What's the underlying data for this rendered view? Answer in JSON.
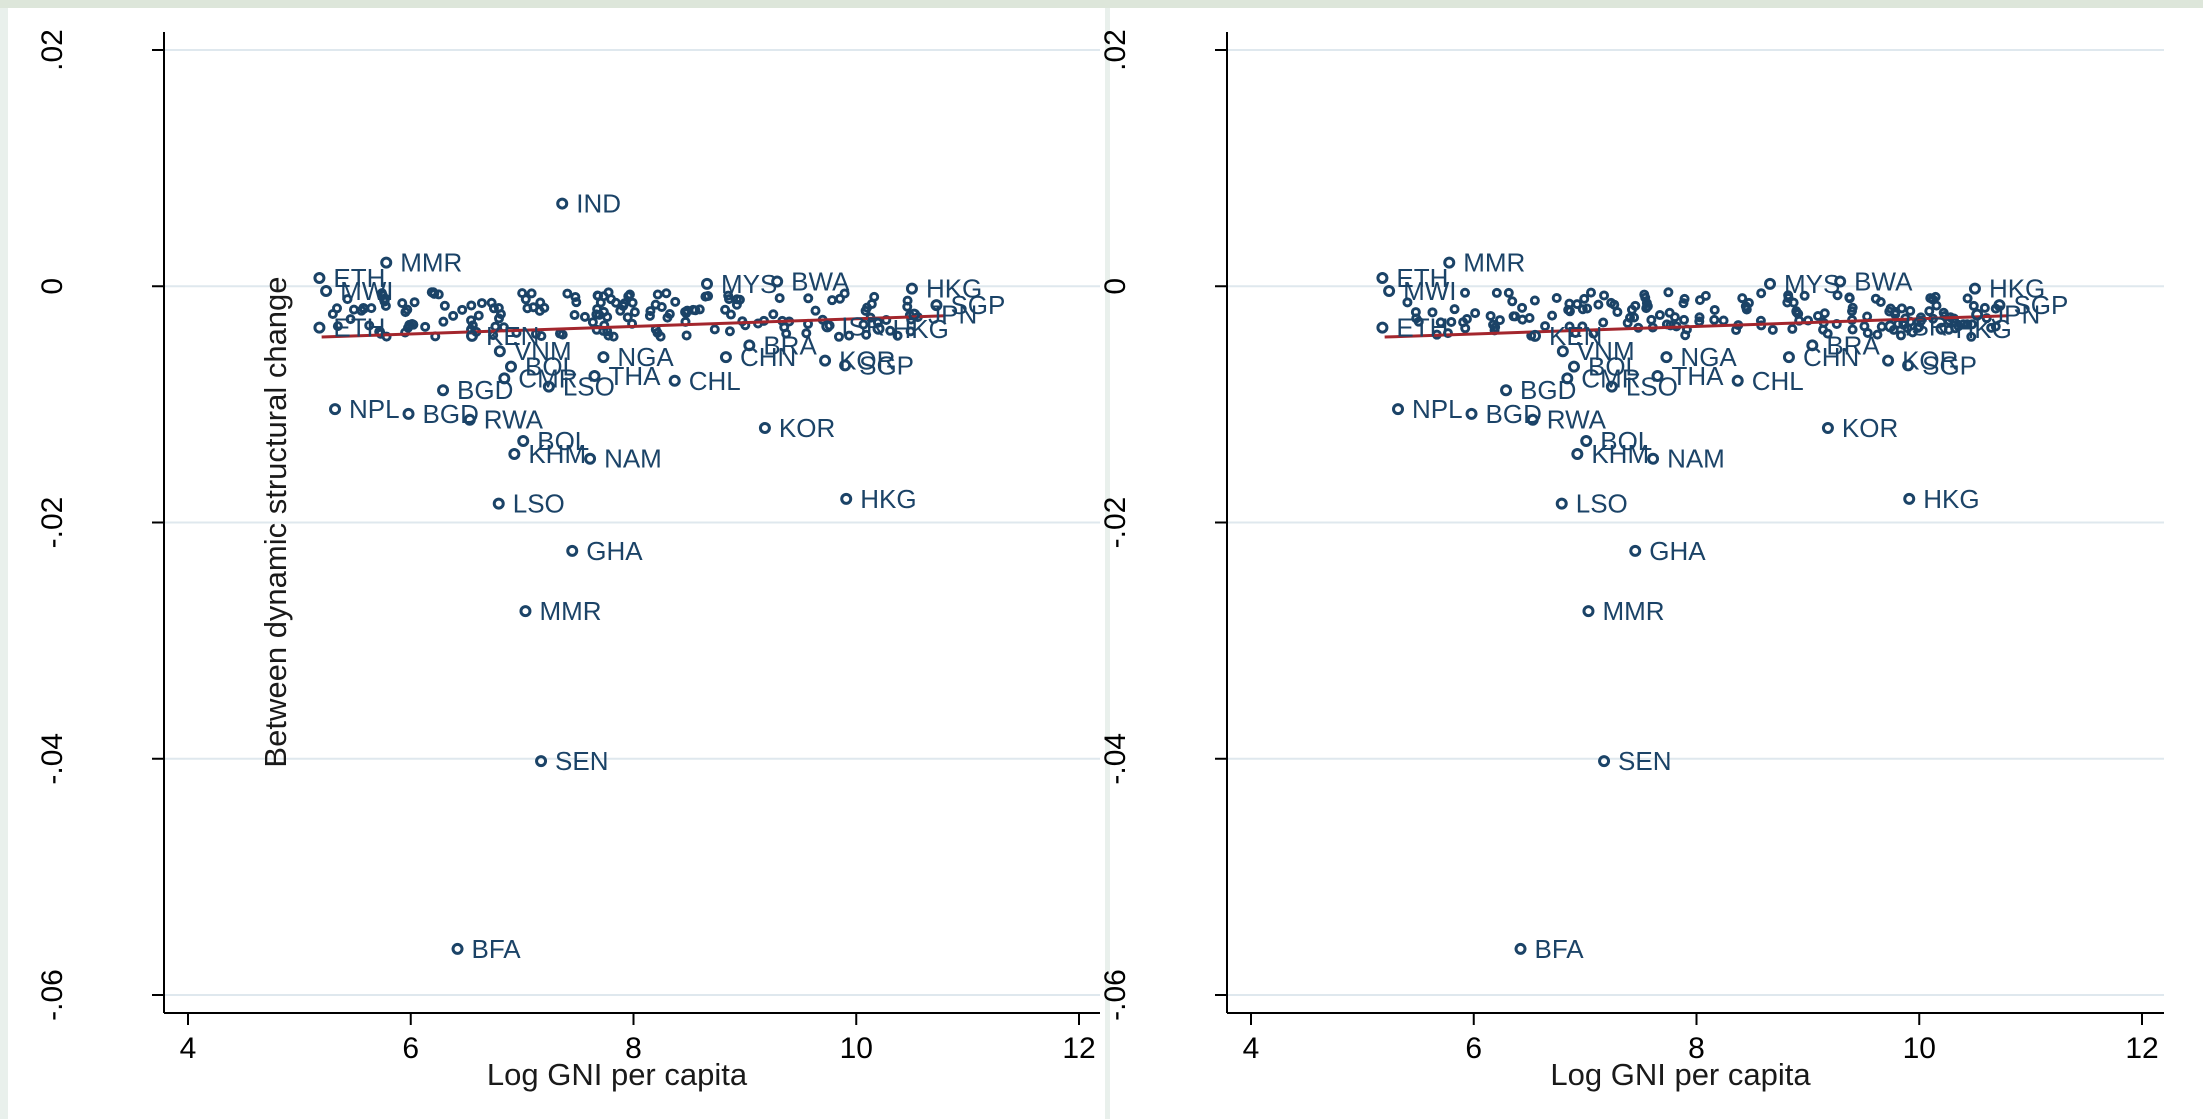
{
  "chart_data": [
    {
      "type": "scatter",
      "xlabel": "Log GNI per capita",
      "ylabel": "Between dynamic structural change",
      "xlim": [
        3.7,
        12.3
      ],
      "ylim": [
        -0.0615,
        0.0215
      ],
      "xticks": [
        4,
        6,
        8,
        10,
        12
      ],
      "xtick_labels": [
        "4",
        "6",
        "8",
        "10",
        "12"
      ],
      "yticks": [
        0.02,
        0,
        -0.02,
        -0.04,
        -0.06
      ],
      "ytick_labels": [
        ".02",
        "0",
        "-.02",
        "-.04",
        "-.06"
      ],
      "grid": true,
      "fit_line": {
        "x": [
          5.2,
          10.8
        ],
        "y": [
          -0.0043,
          -0.0025
        ],
        "color": "#a3262d"
      },
      "points": [
        {
          "label": "IND",
          "x": 7.36,
          "y": 0.007
        },
        {
          "label": "MMR",
          "x": 5.78,
          "y": 0.002
        },
        {
          "label": "ETH",
          "x": 5.18,
          "y": 0.0007
        },
        {
          "label": "MWI",
          "x": 5.24,
          "y": -0.0004
        },
        {
          "label": "MYS",
          "x": 8.66,
          "y": 0.0002
        },
        {
          "label": "BWA",
          "x": 9.29,
          "y": 0.0004
        },
        {
          "label": "HKG",
          "x": 10.5,
          "y": -0.0002
        },
        {
          "label": "SGP",
          "x": 10.72,
          "y": -0.0016
        },
        {
          "label": "JPN",
          "x": 10.52,
          "y": -0.0024
        },
        {
          "label": "ISR",
          "x": 9.74,
          "y": -0.0034
        },
        {
          "label": "HKG",
          "x": 10.2,
          "y": -0.0036
        },
        {
          "label": "ETH",
          "x": 5.18,
          "y": -0.0035
        },
        {
          "label": "KEN",
          "x": 6.55,
          "y": -0.0042
        },
        {
          "label": "BRA",
          "x": 9.04,
          "y": -0.005
        },
        {
          "label": "VNM",
          "x": 6.8,
          "y": -0.0055
        },
        {
          "label": "NGA",
          "x": 7.73,
          "y": -0.006
        },
        {
          "label": "CHN",
          "x": 8.83,
          "y": -0.006
        },
        {
          "label": "KOR",
          "x": 9.72,
          "y": -0.0063
        },
        {
          "label": "SGP",
          "x": 9.9,
          "y": -0.0067
        },
        {
          "label": "BOL",
          "x": 6.9,
          "y": -0.0068
        },
        {
          "label": "CMR",
          "x": 6.84,
          "y": -0.0078
        },
        {
          "label": "THA",
          "x": 7.65,
          "y": -0.0076
        },
        {
          "label": "CHL",
          "x": 8.37,
          "y": -0.008
        },
        {
          "label": "LSO",
          "x": 7.24,
          "y": -0.0085
        },
        {
          "label": "BGD",
          "x": 6.29,
          "y": -0.0088
        },
        {
          "label": "NPL",
          "x": 5.32,
          "y": -0.0104
        },
        {
          "label": "BGD",
          "x": 5.98,
          "y": -0.0108
        },
        {
          "label": "RWA",
          "x": 6.53,
          "y": -0.0113
        },
        {
          "label": "KOR",
          "x": 9.18,
          "y": -0.012
        },
        {
          "label": "BOL",
          "x": 7.01,
          "y": -0.0131
        },
        {
          "label": "KHM",
          "x": 6.93,
          "y": -0.0142
        },
        {
          "label": "NAM",
          "x": 7.61,
          "y": -0.0146
        },
        {
          "label": "HKG",
          "x": 9.91,
          "y": -0.018
        },
        {
          "label": "LSO",
          "x": 6.79,
          "y": -0.0184
        },
        {
          "label": "GHA",
          "x": 7.45,
          "y": -0.0224
        },
        {
          "label": "MMR",
          "x": 7.03,
          "y": -0.0275
        },
        {
          "label": "SEN",
          "x": 7.17,
          "y": -0.0402
        },
        {
          "label": "BFA",
          "x": 6.42,
          "y": -0.0561
        }
      ]
    },
    {
      "type": "scatter",
      "xlabel": "Log GNI per capita",
      "ylabel": "",
      "xlim": [
        3.7,
        12.3
      ],
      "ylim": [
        -0.0615,
        0.0215
      ],
      "xticks": [
        4,
        6,
        8,
        10,
        12
      ],
      "xtick_labels": [
        "4",
        "6",
        "8",
        "10",
        "12"
      ],
      "yticks": [
        0.02,
        0,
        -0.02,
        -0.04,
        -0.06
      ],
      "ytick_labels": [
        ".02",
        "0",
        "-.02",
        "-.04",
        "-.06"
      ],
      "grid": true,
      "fit_line": {
        "x": [
          5.2,
          10.8
        ],
        "y": [
          -0.0043,
          -0.0025
        ],
        "color": "#a3262d"
      },
      "points": [
        {
          "label": "MMR",
          "x": 5.78,
          "y": 0.002
        },
        {
          "label": "ETH",
          "x": 5.18,
          "y": 0.0007
        },
        {
          "label": "MWI",
          "x": 5.24,
          "y": -0.0004
        },
        {
          "label": "MYS",
          "x": 8.66,
          "y": 0.0002
        },
        {
          "label": "BWA",
          "x": 9.29,
          "y": 0.0004
        },
        {
          "label": "HKG",
          "x": 10.5,
          "y": -0.0002
        },
        {
          "label": "SGP",
          "x": 10.72,
          "y": -0.0016
        },
        {
          "label": "JPN",
          "x": 10.52,
          "y": -0.0024
        },
        {
          "label": "ISR",
          "x": 9.74,
          "y": -0.0034
        },
        {
          "label": "HKG",
          "x": 10.2,
          "y": -0.0036
        },
        {
          "label": "ETH",
          "x": 5.18,
          "y": -0.0035
        },
        {
          "label": "KEN",
          "x": 6.55,
          "y": -0.0042
        },
        {
          "label": "BRA",
          "x": 9.04,
          "y": -0.005
        },
        {
          "label": "VNM",
          "x": 6.8,
          "y": -0.0055
        },
        {
          "label": "NGA",
          "x": 7.73,
          "y": -0.006
        },
        {
          "label": "CHN",
          "x": 8.83,
          "y": -0.006
        },
        {
          "label": "KOR",
          "x": 9.72,
          "y": -0.0063
        },
        {
          "label": "SGP",
          "x": 9.9,
          "y": -0.0067
        },
        {
          "label": "BOL",
          "x": 6.9,
          "y": -0.0068
        },
        {
          "label": "CMR",
          "x": 6.84,
          "y": -0.0078
        },
        {
          "label": "THA",
          "x": 7.65,
          "y": -0.0076
        },
        {
          "label": "CHL",
          "x": 8.37,
          "y": -0.008
        },
        {
          "label": "LSO",
          "x": 7.24,
          "y": -0.0085
        },
        {
          "label": "BGD",
          "x": 6.29,
          "y": -0.0088
        },
        {
          "label": "NPL",
          "x": 5.32,
          "y": -0.0104
        },
        {
          "label": "BGD",
          "x": 5.98,
          "y": -0.0108
        },
        {
          "label": "RWA",
          "x": 6.53,
          "y": -0.0113
        },
        {
          "label": "KOR",
          "x": 9.18,
          "y": -0.012
        },
        {
          "label": "BOL",
          "x": 7.01,
          "y": -0.0131
        },
        {
          "label": "KHM",
          "x": 6.93,
          "y": -0.0142
        },
        {
          "label": "NAM",
          "x": 7.61,
          "y": -0.0146
        },
        {
          "label": "HKG",
          "x": 9.91,
          "y": -0.018
        },
        {
          "label": "LSO",
          "x": 6.79,
          "y": -0.0184
        },
        {
          "label": "GHA",
          "x": 7.45,
          "y": -0.0224
        },
        {
          "label": "MMR",
          "x": 7.03,
          "y": -0.0275
        },
        {
          "label": "SEN",
          "x": 7.17,
          "y": -0.0402
        },
        {
          "label": "BFA",
          "x": 6.42,
          "y": -0.0561
        }
      ]
    }
  ],
  "colors": {
    "background": "#e9f0ec",
    "plot_background": "#ffffff",
    "gridline": "#dfe8ee",
    "marker": "#1b4367",
    "fit_line": "#a3262d"
  }
}
